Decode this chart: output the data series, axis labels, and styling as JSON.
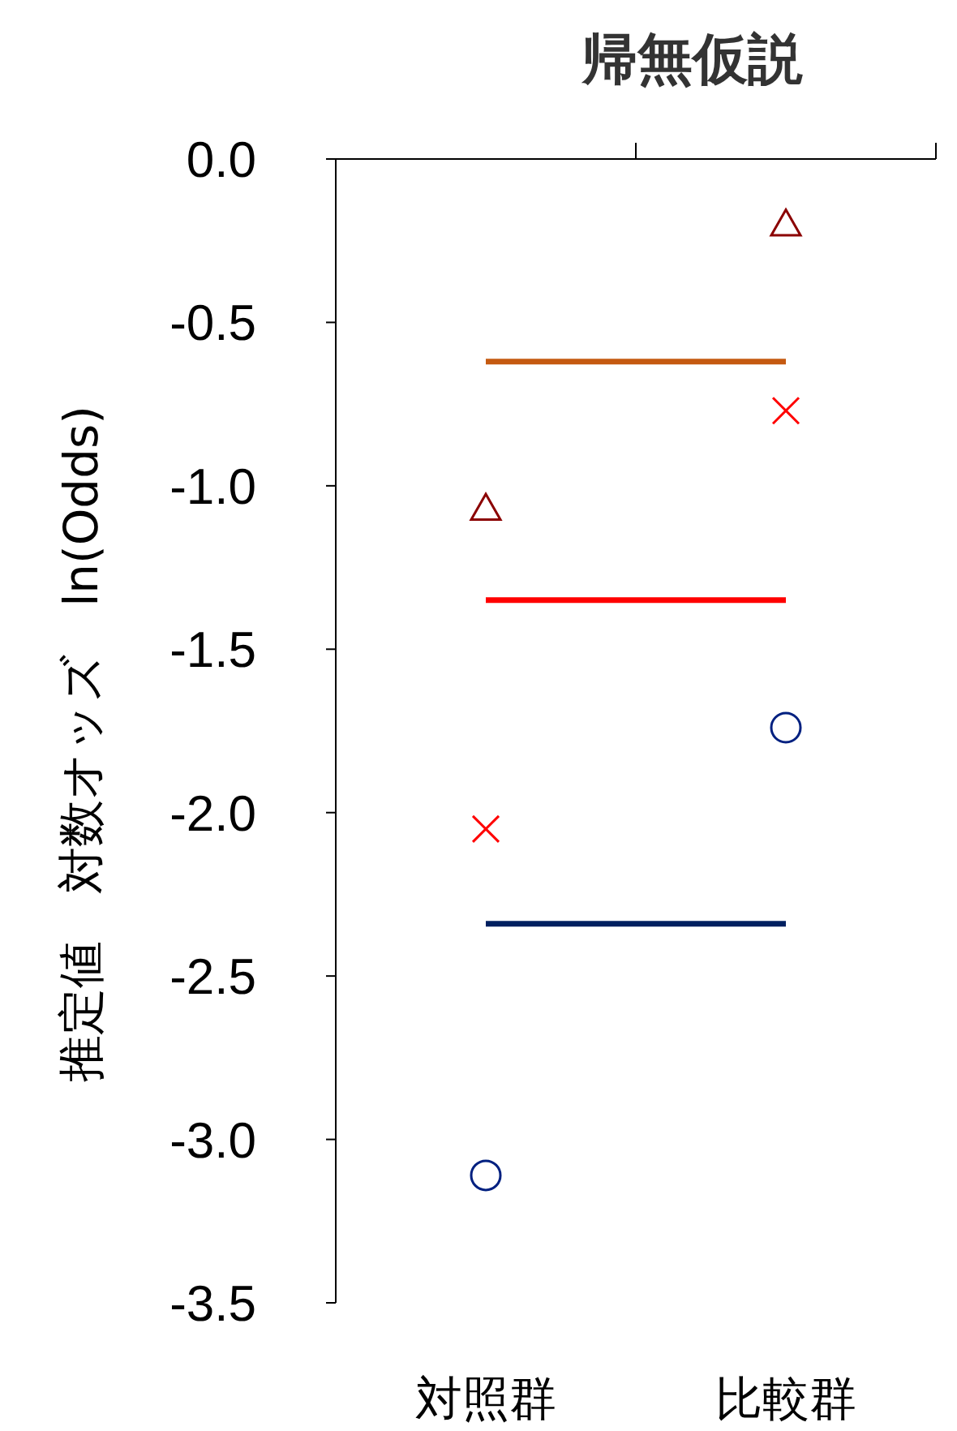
{
  "chart_data": {
    "type": "scatter",
    "title": "帰無仮説",
    "ylabel": "推定値　対数オッズ　ln(Odds)",
    "categories": [
      "対照群",
      "比較群"
    ],
    "ylim": [
      -3.5,
      0
    ],
    "yticks": [
      {
        "value": 0,
        "label": "0.0"
      },
      {
        "value": -0.5,
        "label": "-0.5"
      },
      {
        "value": -1,
        "label": "-1.0"
      },
      {
        "value": -1.5,
        "label": "-1.5"
      },
      {
        "value": -2,
        "label": "-2.0"
      },
      {
        "value": -2.5,
        "label": "-2.5"
      },
      {
        "value": -3,
        "label": "-3.0"
      },
      {
        "value": -3.5,
        "label": "-3.5"
      }
    ],
    "series": [
      {
        "type": "line",
        "color": "#c55a11",
        "values": [
          -0.62,
          -0.62
        ],
        "marker": "none"
      },
      {
        "type": "line",
        "color": "#ff0000",
        "values": [
          -1.35,
          -1.35
        ],
        "marker": "none"
      },
      {
        "type": "line",
        "color": "#002060",
        "values": [
          -2.34,
          -2.34
        ],
        "marker": "none"
      },
      {
        "color": "#8b0000",
        "values": [
          -1.07,
          -0.2
        ],
        "marker": "triangle"
      },
      {
        "color": "#ff0000",
        "values": [
          -2.05,
          -0.77
        ],
        "marker": "cross"
      },
      {
        "color": "#002080",
        "values": [
          -3.11,
          -1.74
        ],
        "marker": "circle"
      }
    ]
  }
}
